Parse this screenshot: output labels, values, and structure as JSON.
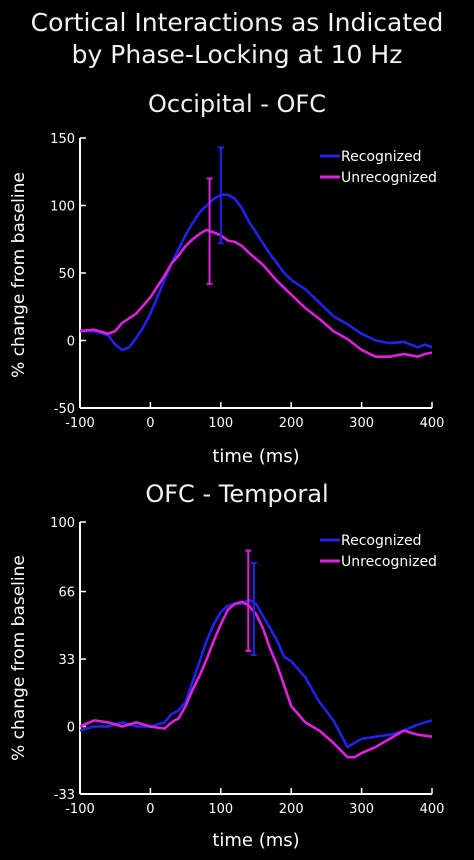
{
  "header": {
    "title_line1": "Cortical Interactions as Indicated",
    "title_line2": "by Phase-Locking at 10 Hz"
  },
  "colors": {
    "recognized": "#2222ee",
    "unrecognized": "#dd22dd"
  },
  "chart_data": [
    {
      "type": "line",
      "title": "Occipital - OFC",
      "xlabel": "time (ms)",
      "ylabel": "% change from baseline",
      "xlim": [
        -100,
        400
      ],
      "ylim": [
        -50,
        150
      ],
      "xticks": [
        -100,
        0,
        100,
        200,
        300,
        400
      ],
      "yticks": [
        -50,
        0,
        50,
        100,
        150
      ],
      "legend": "top-right",
      "series": [
        {
          "name": "Recognized",
          "x": [
            -100,
            -80,
            -60,
            -50,
            -40,
            -30,
            -20,
            -10,
            0,
            10,
            20,
            30,
            40,
            50,
            60,
            70,
            80,
            90,
            100,
            110,
            120,
            130,
            140,
            150,
            160,
            170,
            180,
            190,
            200,
            220,
            240,
            260,
            280,
            300,
            320,
            340,
            360,
            380,
            390,
            400
          ],
          "y": [
            7,
            7,
            4,
            -3,
            -7,
            -5,
            2,
            10,
            20,
            32,
            45,
            57,
            68,
            78,
            87,
            95,
            100,
            105,
            108,
            108,
            105,
            98,
            88,
            80,
            72,
            64,
            57,
            50,
            45,
            38,
            28,
            18,
            12,
            5,
            0,
            -2,
            -1,
            -5,
            -3,
            -5
          ]
        },
        {
          "name": "Unrecognized",
          "x": [
            -100,
            -80,
            -60,
            -50,
            -40,
            -20,
            0,
            10,
            20,
            30,
            40,
            50,
            60,
            70,
            80,
            90,
            100,
            110,
            120,
            130,
            140,
            160,
            180,
            200,
            220,
            240,
            260,
            280,
            300,
            320,
            340,
            360,
            380,
            390,
            400
          ],
          "y": [
            7,
            8,
            5,
            7,
            13,
            20,
            32,
            40,
            48,
            57,
            63,
            70,
            75,
            79,
            82,
            80,
            78,
            74,
            73,
            70,
            65,
            56,
            44,
            34,
            24,
            16,
            7,
            1,
            -7,
            -12,
            -12,
            -10,
            -12,
            -10,
            -9
          ]
        }
      ],
      "error_bars": [
        {
          "series": "Recognized",
          "x": 100,
          "low": 72,
          "high": 143
        },
        {
          "series": "Unrecognized",
          "x": 84,
          "low": 42,
          "high": 120
        }
      ]
    },
    {
      "type": "line",
      "title": "OFC - Temporal",
      "xlabel": "time (ms)",
      "ylabel": "% change from baseline",
      "xlim": [
        -100,
        400
      ],
      "ylim": [
        -33,
        100
      ],
      "xticks": [
        -100,
        0,
        100,
        200,
        300,
        400
      ],
      "yticks": [
        -33,
        0,
        33,
        66,
        100
      ],
      "legend": "top-right",
      "series": [
        {
          "name": "Recognized",
          "x": [
            -100,
            -80,
            -60,
            -40,
            -20,
            0,
            20,
            30,
            40,
            50,
            60,
            70,
            80,
            90,
            100,
            110,
            120,
            130,
            140,
            150,
            160,
            170,
            180,
            190,
            200,
            210,
            220,
            240,
            260,
            280,
            300,
            320,
            340,
            360,
            380,
            400
          ],
          "y": [
            -2,
            0,
            0,
            2,
            0,
            0,
            2,
            6,
            8,
            12,
            22,
            32,
            42,
            50,
            56,
            59,
            60,
            60,
            62,
            60,
            54,
            48,
            42,
            34,
            32,
            28,
            24,
            12,
            3,
            -10,
            -6,
            -5,
            -4,
            -2,
            1,
            3
          ]
        },
        {
          "name": "Unrecognized",
          "x": [
            -100,
            -80,
            -60,
            -40,
            -20,
            0,
            20,
            30,
            40,
            50,
            60,
            70,
            80,
            90,
            100,
            110,
            120,
            130,
            140,
            150,
            160,
            170,
            180,
            190,
            200,
            220,
            240,
            260,
            280,
            290,
            300,
            320,
            340,
            360,
            380,
            400
          ],
          "y": [
            0,
            3,
            2,
            0,
            2,
            0,
            -1,
            2,
            4,
            10,
            18,
            25,
            33,
            42,
            50,
            57,
            60,
            61,
            59,
            55,
            48,
            38,
            30,
            20,
            10,
            2,
            -2,
            -8,
            -15,
            -15,
            -13,
            -10,
            -6,
            -2,
            -4,
            -5
          ]
        }
      ],
      "error_bars": [
        {
          "series": "Recognized",
          "x": 147,
          "low": 35,
          "high": 80
        },
        {
          "series": "Unrecognized",
          "x": 139,
          "low": 37,
          "high": 86
        }
      ]
    }
  ]
}
